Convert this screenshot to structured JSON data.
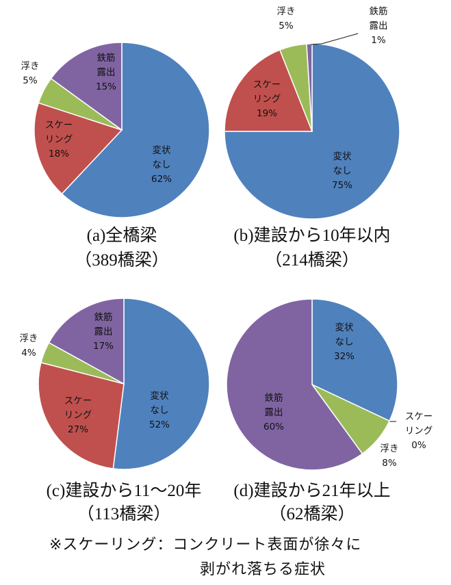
{
  "chart_data": [
    {
      "type": "pie",
      "caption": "(a)全橋梁",
      "count": "（389橋梁）",
      "slices": [
        {
          "label": [
            "変状",
            "なし"
          ],
          "pct": "62%",
          "value": 62,
          "color": "#4F81BD"
        },
        {
          "label": [
            "スケー",
            "リング"
          ],
          "pct": "18%",
          "value": 18,
          "color": "#C0504D"
        },
        {
          "label": [
            "浮き"
          ],
          "pct": "5%",
          "value": 5,
          "color": "#9BBB59"
        },
        {
          "label": [
            "鉄筋",
            "露出"
          ],
          "pct": "15%",
          "value": 15,
          "color": "#8064A2"
        }
      ]
    },
    {
      "type": "pie",
      "caption": "(b)建設から10年以内",
      "count": "（214橋梁）",
      "slices": [
        {
          "label": [
            "変状",
            "なし"
          ],
          "pct": "75%",
          "value": 75,
          "color": "#4F81BD"
        },
        {
          "label": [
            "スケー",
            "リング"
          ],
          "pct": "19%",
          "value": 19,
          "color": "#C0504D"
        },
        {
          "label": [
            "浮き"
          ],
          "pct": "5%",
          "value": 5,
          "color": "#9BBB59"
        },
        {
          "label": [
            "鉄筋",
            "露出"
          ],
          "pct": "1%",
          "value": 1,
          "color": "#8064A2"
        }
      ]
    },
    {
      "type": "pie",
      "caption": "(c)建設から11～20年",
      "count": "（113橋梁）",
      "slices": [
        {
          "label": [
            "変状",
            "なし"
          ],
          "pct": "52%",
          "value": 52,
          "color": "#4F81BD"
        },
        {
          "label": [
            "スケー",
            "リング"
          ],
          "pct": "27%",
          "value": 27,
          "color": "#C0504D"
        },
        {
          "label": [
            "浮き"
          ],
          "pct": "4%",
          "value": 4,
          "color": "#9BBB59"
        },
        {
          "label": [
            "鉄筋",
            "露出"
          ],
          "pct": "17%",
          "value": 17,
          "color": "#8064A2"
        }
      ]
    },
    {
      "type": "pie",
      "caption": "(d)建設から21年以上",
      "count": "（62橋梁）",
      "slices": [
        {
          "label": [
            "変状",
            "なし"
          ],
          "pct": "32%",
          "value": 32,
          "color": "#4F81BD"
        },
        {
          "label": [
            "スケー",
            "リング"
          ],
          "pct": "0%",
          "value": 0,
          "color": "#C0504D"
        },
        {
          "label": [
            "浮き"
          ],
          "pct": "8%",
          "value": 8,
          "color": "#9BBB59"
        },
        {
          "label": [
            "鉄筋",
            "露出"
          ],
          "pct": "60%",
          "value": 60,
          "color": "#8064A2"
        }
      ]
    }
  ],
  "footnote": {
    "line1": "※スケーリング：コンクリート表面が徐々に",
    "line2": "剥がれ落ちる症状"
  }
}
